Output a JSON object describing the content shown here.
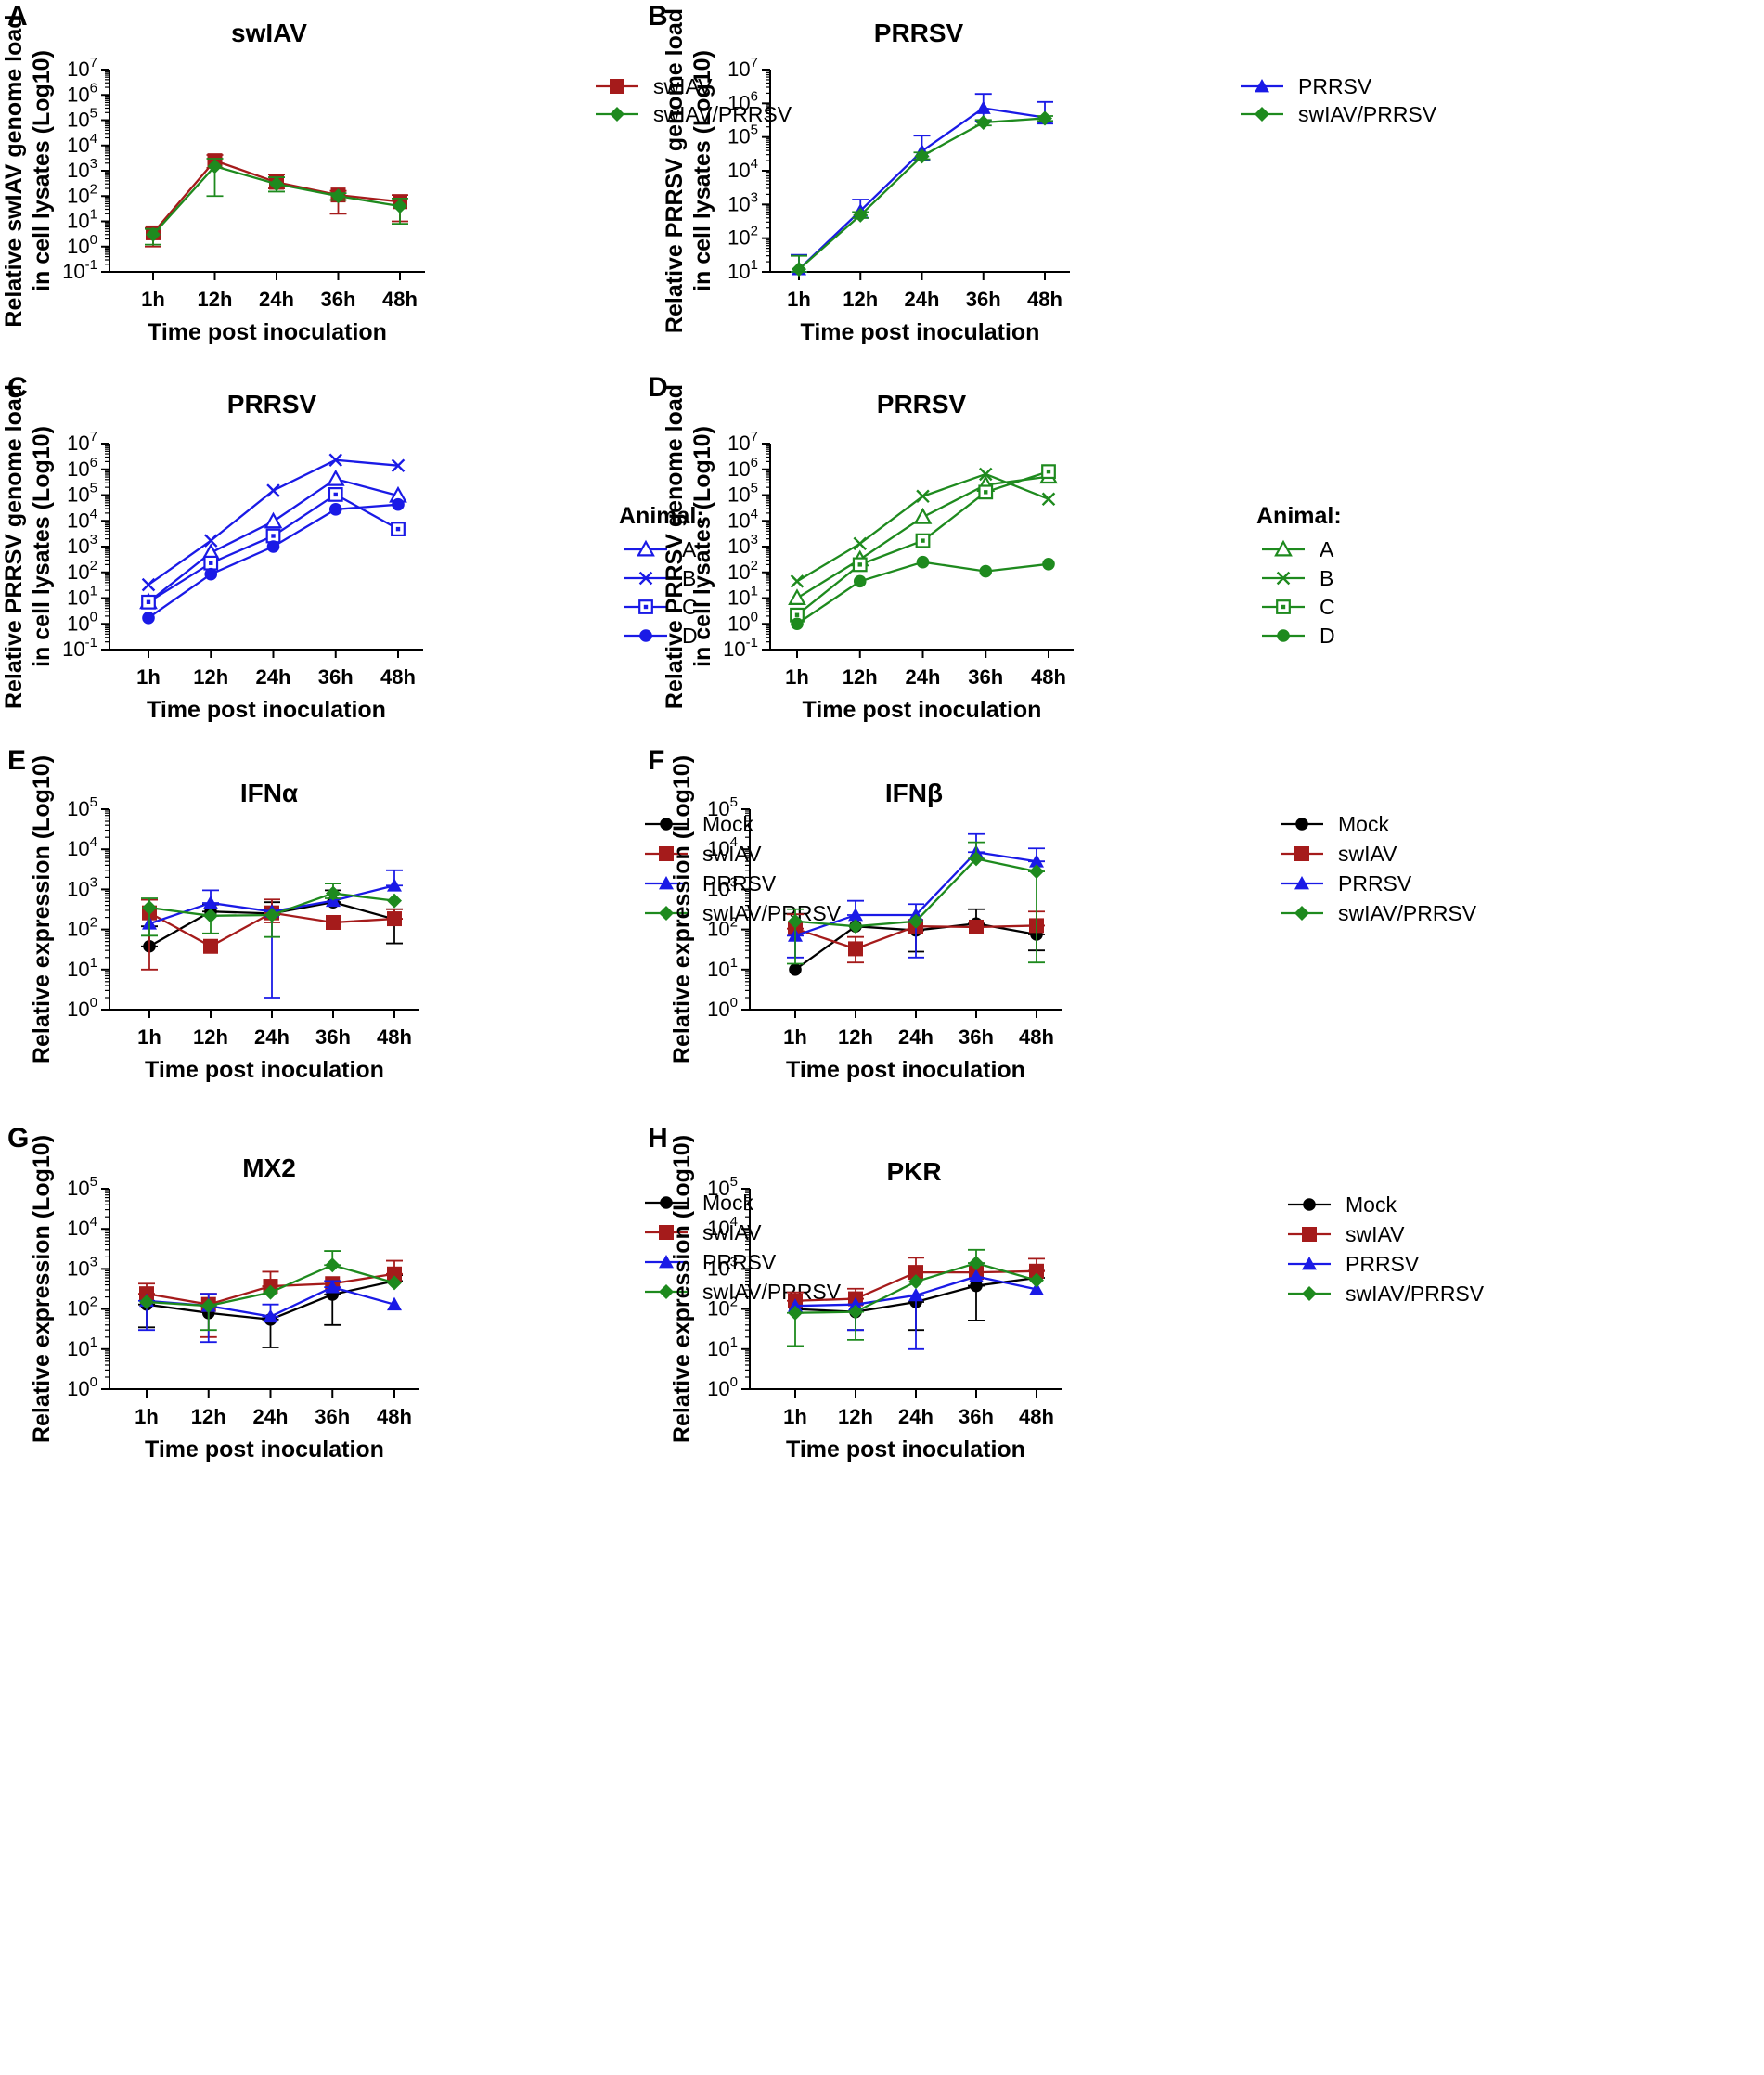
{
  "figure": {
    "panels": [
      "A",
      "B",
      "C",
      "D",
      "E",
      "F",
      "G",
      "H"
    ]
  },
  "chart_data": [
    {
      "panel": "A",
      "type": "line",
      "title": "swIAV",
      "xlabel": "Time post inoculation",
      "ylabel": [
        "Relative swIAV genome load",
        "in cell lysates (Log10)"
      ],
      "yscale": "log",
      "ylim_exp": [
        -1,
        7
      ],
      "categories": [
        "1h",
        "12h",
        "24h",
        "36h",
        "48h"
      ],
      "legend_title": "",
      "series": [
        {
          "name": "swIAV",
          "color": "#a51b1b",
          "marker": "square",
          "values": [
            3.5,
            2500,
            350,
            110,
            60
          ],
          "err": [
            [
              1.0,
              1300,
              200,
              20,
              10
            ],
            [
              5.5,
              4200,
              700,
              160,
              110
            ]
          ]
        },
        {
          "name": "swIAV/PRRSV",
          "color": "#1e8a1e",
          "marker": "diamond",
          "values": [
            3.0,
            1500,
            300,
            100,
            40
          ],
          "err": [
            [
              1.2,
              100,
              150,
              70,
              8
            ],
            [
              5.0,
              3000,
              550,
              130,
              80
            ]
          ]
        }
      ]
    },
    {
      "panel": "B",
      "type": "line",
      "title": "PRRSV",
      "xlabel": "Time post inoculation",
      "ylabel": [
        "Relative PRRSV genome load",
        "in cell lysates (Log10)"
      ],
      "yscale": "log",
      "ylim_exp": [
        1,
        7
      ],
      "categories": [
        "1h",
        "12h",
        "24h",
        "36h",
        "48h"
      ],
      "legend_title": "",
      "series": [
        {
          "name": "PRRSV",
          "color": "#1a1ae6",
          "marker": "triangle",
          "values": [
            12,
            650,
            38000,
            720000,
            380000
          ],
          "err": [
            [
              10,
              400,
              20000,
              300000,
              250000
            ],
            [
              32,
              1400,
              110000,
              1900000,
              1100000
            ]
          ]
        },
        {
          "name": "swIAV/PRRSV",
          "color": "#1e8a1e",
          "marker": "diamond",
          "values": [
            12,
            480,
            27000,
            270000,
            360000
          ],
          "err": [
            [
              10,
              400,
              22000,
              220000,
              300000
            ],
            [
              30,
              600,
              35000,
              320000,
              420000
            ]
          ]
        }
      ]
    },
    {
      "panel": "C",
      "type": "line",
      "title": "PRRSV",
      "xlabel": "Time post inoculation",
      "ylabel": [
        "Relative PRRSV genome load",
        "in cell lysates (Log10)"
      ],
      "yscale": "log",
      "ylim_exp": [
        -1,
        7
      ],
      "categories": [
        "1h",
        "12h",
        "24h",
        "36h",
        "48h"
      ],
      "legend_title": "Animal:",
      "series": [
        {
          "name": "A",
          "color": "#1a1ae6",
          "marker": "open-triangle",
          "values": [
            7,
            580,
            9500,
            420000,
            95000
          ]
        },
        {
          "name": "B",
          "color": "#1a1ae6",
          "marker": "cross",
          "values": [
            33,
            1700,
            150000,
            2300000,
            1400000
          ]
        },
        {
          "name": "C",
          "color": "#1a1ae6",
          "marker": "open-square-dot",
          "values": [
            7,
            230,
            2600,
            105000,
            4800
          ]
        },
        {
          "name": "D",
          "color": "#1a1ae6",
          "marker": "circle",
          "values": [
            1.7,
            85,
            1000,
            28000,
            43000
          ]
        }
      ]
    },
    {
      "panel": "D",
      "type": "line",
      "title": "PRRSV",
      "xlabel": "Time post inoculation",
      "ylabel": [
        "Relative PRRSV genome load",
        "in cell lysates (Log10)"
      ],
      "yscale": "log",
      "ylim_exp": [
        -1,
        7
      ],
      "categories": [
        "1h",
        "12h",
        "24h",
        "36h",
        "48h"
      ],
      "legend_title": "Animal:",
      "series": [
        {
          "name": "A",
          "color": "#1e8a1e",
          "marker": "open-triangle",
          "values": [
            10,
            320,
            14000,
            250000,
            520000
          ]
        },
        {
          "name": "B",
          "color": "#1e8a1e",
          "marker": "cross",
          "values": [
            45,
            1300,
            90000,
            650000,
            70000
          ]
        },
        {
          "name": "C",
          "color": "#1e8a1e",
          "marker": "open-square-dot",
          "values": [
            2.2,
            200,
            1700,
            130000,
            820000
          ]
        },
        {
          "name": "D",
          "color": "#1e8a1e",
          "marker": "circle",
          "values": [
            1.0,
            45,
            250,
            110,
            210
          ]
        }
      ]
    },
    {
      "panel": "E",
      "type": "line",
      "title": "IFNα",
      "xlabel": "Time post inoculation",
      "ylabel": [
        "Relative expression (Log10)"
      ],
      "yscale": "log",
      "ylim_exp": [
        0,
        5
      ],
      "categories": [
        "1h",
        "12h",
        "24h",
        "36h",
        "48h"
      ],
      "legend_title": "",
      "series": [
        {
          "name": "Mock",
          "color": "#000000",
          "marker": "circle",
          "values": [
            38,
            280,
            250,
            480,
            180
          ],
          "err": [
            [
              38,
              280,
              250,
              480,
              45
            ],
            [
              120,
              420,
              480,
              950,
              320
            ]
          ]
        },
        {
          "name": "swIAV",
          "color": "#a51b1b",
          "marker": "square",
          "values": [
            260,
            38,
            260,
            150,
            185
          ],
          "err": [
            [
              10,
              38,
              150,
              150,
              185
            ],
            [
              550,
              38,
              560,
              150,
              320
            ]
          ]
        },
        {
          "name": "PRRSV",
          "color": "#1a1ae6",
          "marker": "triangle",
          "values": [
            140,
            460,
            280,
            520,
            1250
          ],
          "err": [
            [
              140,
              460,
              2,
              520,
              1250
            ],
            [
              140,
              950,
              280,
              520,
              3000
            ]
          ]
        },
        {
          "name": "swIAV/PRRSV",
          "color": "#1e8a1e",
          "marker": "diamond",
          "values": [
            350,
            220,
            230,
            800,
            520
          ],
          "err": [
            [
              70,
              80,
              65,
              600,
              520
            ],
            [
              600,
              220,
              230,
              1400,
              520
            ]
          ]
        }
      ]
    },
    {
      "panel": "F",
      "type": "line",
      "title": "IFNβ",
      "xlabel": "Time post inoculation",
      "ylabel": [
        "Relative expression (Log10)"
      ],
      "yscale": "log",
      "ylim_exp": [
        0,
        5
      ],
      "categories": [
        "1h",
        "12h",
        "24h",
        "36h",
        "48h"
      ],
      "legend_title": "",
      "series": [
        {
          "name": "Mock",
          "color": "#000000",
          "marker": "circle",
          "values": [
            10,
            120,
            95,
            140,
            75
          ],
          "err": [
            [
              10,
              120,
              28,
              140,
              30
            ],
            [
              10,
              120,
              95,
              320,
              75
            ]
          ]
        },
        {
          "name": "swIAV",
          "color": "#a51b1b",
          "marker": "square",
          "values": [
            105,
            33,
            120,
            115,
            125
          ],
          "err": [
            [
              105,
              15,
              120,
              115,
              125
            ],
            [
              240,
              65,
              120,
              115,
              280
            ]
          ]
        },
        {
          "name": "PRRSV",
          "color": "#1a1ae6",
          "marker": "triangle",
          "values": [
            70,
            230,
            230,
            8500,
            5000
          ],
          "err": [
            [
              20,
              230,
              20,
              8500,
              5000
            ],
            [
              70,
              520,
              430,
              24000,
              10500
            ]
          ]
        },
        {
          "name": "swIAV/PRRSV",
          "color": "#1e8a1e",
          "marker": "diamond",
          "values": [
            160,
            120,
            160,
            5800,
            2800
          ],
          "err": [
            [
              14,
              120,
              160,
              5800,
              15
            ],
            [
              320,
              120,
              160,
              15000,
              2800
            ]
          ]
        }
      ]
    },
    {
      "panel": "G",
      "type": "line",
      "title": "MX2",
      "xlabel": "Time post inoculation",
      "ylabel": [
        "Relative expression (Log10)"
      ],
      "yscale": "log",
      "ylim_exp": [
        0,
        5
      ],
      "categories": [
        "1h",
        "12h",
        "24h",
        "36h",
        "48h"
      ],
      "legend_title": "",
      "series": [
        {
          "name": "Mock",
          "color": "#000000",
          "marker": "circle",
          "values": [
            130,
            80,
            55,
            230,
            500
          ],
          "err": [
            [
              35,
              80,
              11,
              40,
              500
            ],
            [
              130,
              80,
              55,
              230,
              700
            ]
          ]
        },
        {
          "name": "swIAV",
          "color": "#a51b1b",
          "marker": "square",
          "values": [
            240,
            130,
            370,
            430,
            750
          ],
          "err": [
            [
              240,
              20,
              370,
              430,
              750
            ],
            [
              430,
              240,
              850,
              430,
              1600
            ]
          ]
        },
        {
          "name": "PRRSV",
          "color": "#1a1ae6",
          "marker": "triangle",
          "values": [
            160,
            120,
            65,
            350,
            130
          ],
          "err": [
            [
              30,
              15,
              65,
              350,
              130
            ],
            [
              160,
              240,
              130,
              500,
              130
            ]
          ]
        },
        {
          "name": "swIAV/PRRSV",
          "color": "#1e8a1e",
          "marker": "diamond",
          "values": [
            150,
            120,
            260,
            1250,
            450
          ],
          "err": [
            [
              150,
              30,
              260,
              1250,
              450
            ],
            [
              150,
              120,
              260,
              2800,
              450
            ]
          ]
        }
      ]
    },
    {
      "panel": "H",
      "type": "line",
      "title": "PKR",
      "xlabel": "Time post inoculation",
      "ylabel": [
        "Relative expression (Log10)"
      ],
      "yscale": "log",
      "ylim_exp": [
        0,
        5
      ],
      "categories": [
        "1h",
        "12h",
        "24h",
        "36h",
        "48h"
      ],
      "legend_title": "",
      "series": [
        {
          "name": "Mock",
          "color": "#000000",
          "marker": "circle",
          "values": [
            100,
            85,
            150,
            380,
            600
          ],
          "err": [
            [
              100,
              30,
              30,
              52,
              600
            ],
            [
              100,
              85,
              150,
              380,
              900
            ]
          ]
        },
        {
          "name": "swIAV",
          "color": "#a51b1b",
          "marker": "square",
          "values": [
            160,
            180,
            820,
            820,
            880
          ],
          "err": [
            [
              160,
              180,
              820,
              820,
              880
            ],
            [
              260,
              320,
              1900,
              820,
              1800
            ]
          ]
        },
        {
          "name": "PRRSV",
          "color": "#1a1ae6",
          "marker": "triangle",
          "values": [
            120,
            130,
            220,
            650,
            310
          ],
          "err": [
            [
              120,
              30,
              10,
              650,
              310
            ],
            [
              120,
              130,
              220,
              650,
              310
            ]
          ]
        },
        {
          "name": "swIAV/PRRSV",
          "color": "#1e8a1e",
          "marker": "diamond",
          "values": [
            80,
            85,
            480,
            1400,
            520
          ],
          "err": [
            [
              12,
              17,
              480,
              1400,
              520
            ],
            [
              80,
              85,
              480,
              3000,
              520
            ]
          ]
        }
      ]
    }
  ]
}
